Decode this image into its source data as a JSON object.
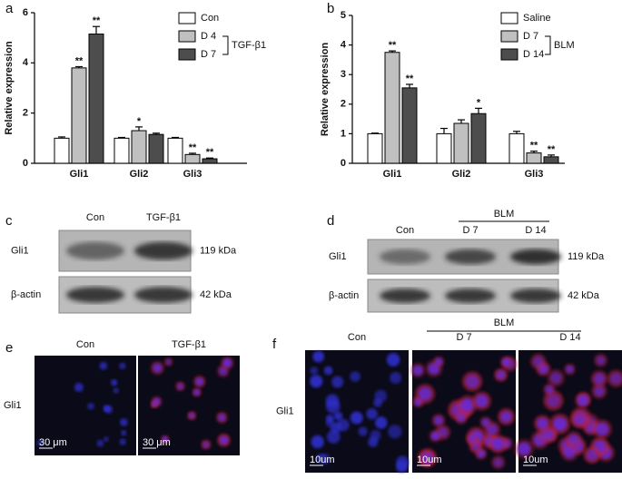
{
  "chart_data": [
    {
      "type": "bar",
      "panel": "a",
      "y_label": "Relative expression",
      "categories": [
        "Gli1",
        "Gli2",
        "Gli3"
      ],
      "series": [
        {
          "name": "Con",
          "color": "#ffffff",
          "values": [
            1,
            1,
            1
          ],
          "errors": [
            0.05,
            0.03,
            0.03
          ],
          "significance": [
            null,
            null,
            null
          ]
        },
        {
          "name": "D 4",
          "color": "#c0c0c0",
          "values": [
            3.8,
            1.3,
            0.35
          ],
          "errors": [
            0.05,
            0.15,
            0.05
          ],
          "significance": [
            "**",
            "*",
            "**"
          ]
        },
        {
          "name": "D 7",
          "color": "#4d4d4d",
          "values": [
            5.15,
            1.15,
            0.18
          ],
          "errors": [
            0.3,
            0.05,
            0.03
          ],
          "significance": [
            "**",
            null,
            "**"
          ]
        }
      ],
      "legend_group": "TGF-β1",
      "ylim": [
        0,
        6
      ],
      "yticks": [
        0,
        2,
        4,
        6
      ]
    },
    {
      "type": "bar",
      "panel": "b",
      "y_label": "Relative expression",
      "categories": [
        "Gli1",
        "Gli2",
        "Gli3"
      ],
      "series": [
        {
          "name": "Saline",
          "color": "#ffffff",
          "values": [
            1,
            1,
            1
          ],
          "errors": [
            0.02,
            0.18,
            0.08
          ],
          "significance": [
            null,
            null,
            null
          ]
        },
        {
          "name": "D 7",
          "color": "#c0c0c0",
          "values": [
            3.75,
            1.35,
            0.35
          ],
          "errors": [
            0.05,
            0.12,
            0.06
          ],
          "significance": [
            "**",
            null,
            "**"
          ]
        },
        {
          "name": "D 14",
          "color": "#4d4d4d",
          "values": [
            2.55,
            1.68,
            0.22
          ],
          "errors": [
            0.12,
            0.18,
            0.06
          ],
          "significance": [
            "**",
            "*",
            "**"
          ]
        }
      ],
      "legend_group": "BLM",
      "ylim": [
        0,
        5
      ],
      "yticks": [
        0,
        1,
        2,
        3,
        4,
        5
      ]
    }
  ],
  "blot_c": {
    "panel": "c",
    "lanes": [
      "Con",
      "TGF-β1"
    ],
    "rows": [
      "Gli1",
      "β-actin"
    ],
    "sizes": [
      "119 kDa",
      "42 kDa"
    ]
  },
  "blot_d": {
    "panel": "d",
    "group": "BLM",
    "lanes": [
      "Con",
      "D 7",
      "D 14"
    ],
    "rows": [
      "Gli1",
      "β-actin"
    ],
    "sizes": [
      "119 kDa",
      "42 kDa"
    ]
  },
  "images_e": {
    "panel": "e",
    "columns": [
      "Con",
      "TGF-β1"
    ],
    "row": "Gli1",
    "scale_bar": "30 μm"
  },
  "images_f": {
    "panel": "f",
    "group": "BLM",
    "columns": [
      "Con",
      "D 7",
      "D 14"
    ],
    "row": "Gli1",
    "scale_bar": "10um"
  }
}
